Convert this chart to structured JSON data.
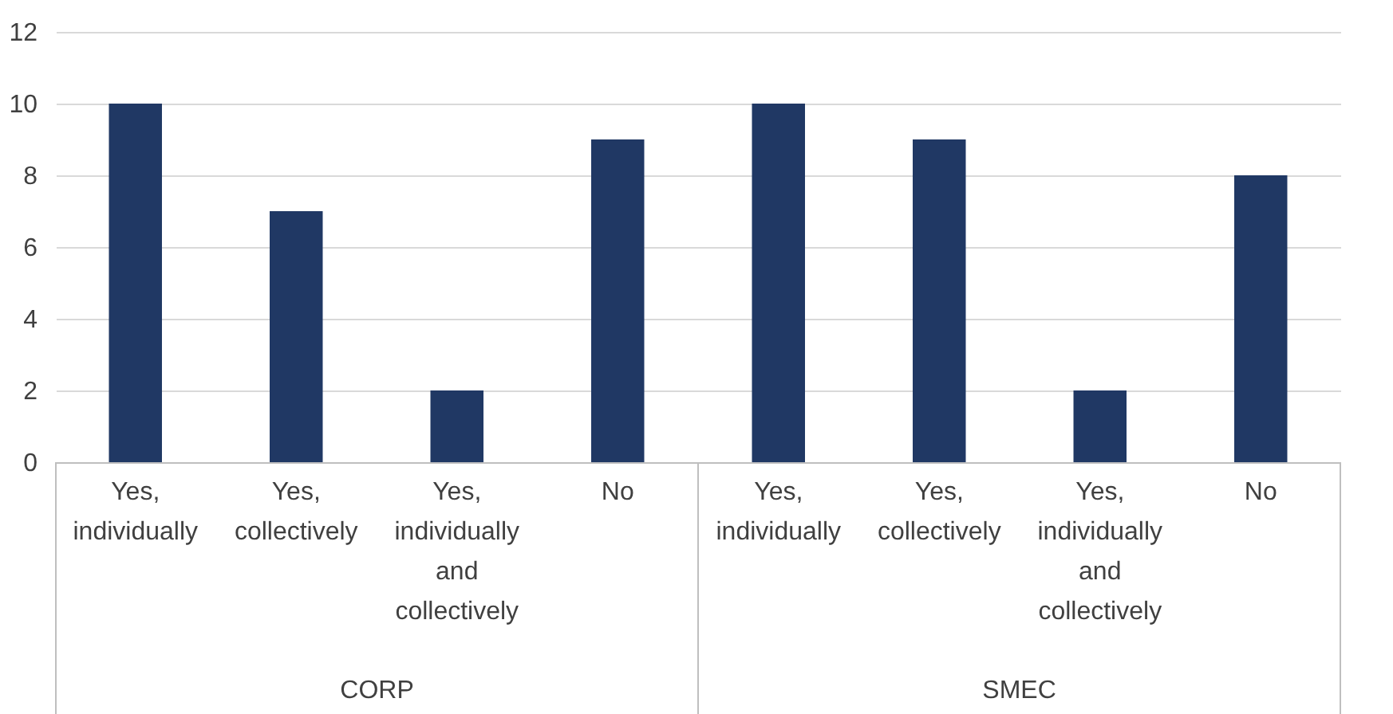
{
  "chart_data": {
    "type": "bar",
    "categories": [
      "Yes, individually",
      "Yes, collectively",
      "Yes, individually and collectively",
      "No",
      "Yes, individually",
      "Yes, collectively",
      "Yes, individually and collectively",
      "No"
    ],
    "values": [
      10,
      7,
      2,
      9,
      10,
      9,
      2,
      8
    ],
    "color": "#203864",
    "ylim": [
      0,
      12
    ],
    "yticks": [
      0,
      2,
      4,
      6,
      8,
      10,
      12
    ],
    "grid": "y",
    "annotations": [
      "CORP",
      "SMEC"
    ]
  }
}
